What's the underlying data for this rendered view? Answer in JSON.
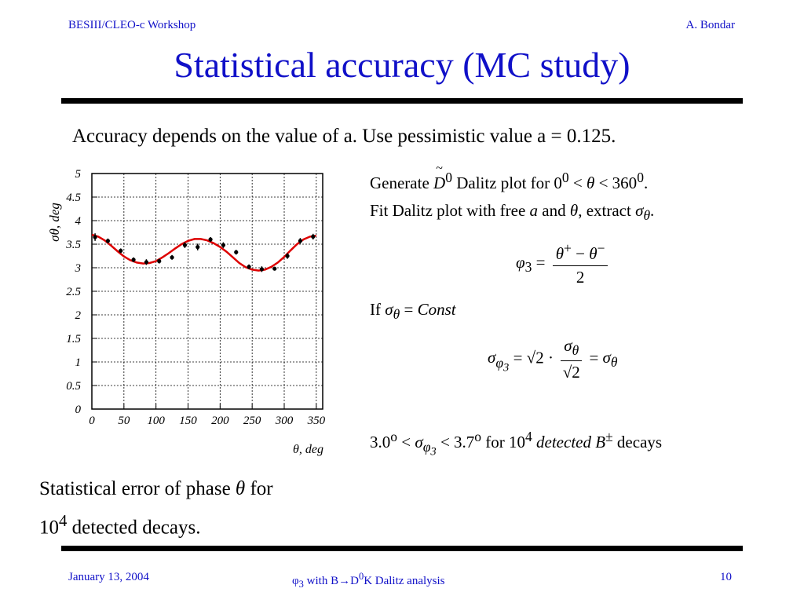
{
  "header": {
    "left": "BESIII/CLEO-c Workshop",
    "right": "A. Bondar"
  },
  "title": "Statistical accuracy (MC study)",
  "intro": "Accuracy depends on the value of a. Use pessimistic value a = 0.125.",
  "right_panel": {
    "line1": "Generate D⁰ Dalitz plot for 0⁰ < θ < 360⁰.",
    "line2": "Fit Dalitz plot with free a and θ, extract σθ.",
    "phi_eq_lhs": "φ3 =",
    "phi_eq_num": "θ+ − θ−",
    "phi_eq_den": "2",
    "if_line": "If σθ = Const",
    "sigma_eq": "σφ3 = √2 · σθ/√2 = σθ",
    "result": "3.0o < σφ3 < 3.7o for 104 detected B± decays"
  },
  "caption": {
    "line1": "Statistical error of phase θ for",
    "line2": "104 detected decays."
  },
  "footer": {
    "left": "January 13, 2004",
    "center": "φ3 with B→D0K Dalitz analysis",
    "right": "10"
  },
  "chart_data": {
    "type": "scatter",
    "ylabel": "σθ, deg",
    "xlabel": "θ, deg",
    "xlim": [
      0,
      360
    ],
    "ylim": [
      0,
      5
    ],
    "xticks": [
      0,
      50,
      100,
      150,
      200,
      250,
      300,
      350
    ],
    "yticks": [
      0,
      0.5,
      1,
      1.5,
      2,
      2.5,
      3,
      3.5,
      4,
      4.5,
      5
    ],
    "grid": true,
    "points": [
      {
        "x": 5,
        "y": 3.65,
        "err": 0.08
      },
      {
        "x": 25,
        "y": 3.57,
        "err": 0.05
      },
      {
        "x": 45,
        "y": 3.36,
        "err": 0.05
      },
      {
        "x": 65,
        "y": 3.17,
        "err": 0.05
      },
      {
        "x": 85,
        "y": 3.12,
        "err": 0.06
      },
      {
        "x": 105,
        "y": 3.14,
        "err": 0.05
      },
      {
        "x": 125,
        "y": 3.22,
        "err": 0.05
      },
      {
        "x": 145,
        "y": 3.48,
        "err": 0.06
      },
      {
        "x": 165,
        "y": 3.44,
        "err": 0.07
      },
      {
        "x": 185,
        "y": 3.6,
        "err": 0.05
      },
      {
        "x": 205,
        "y": 3.48,
        "err": 0.06
      },
      {
        "x": 225,
        "y": 3.33,
        "err": 0.05
      },
      {
        "x": 245,
        "y": 3.02,
        "err": 0.05
      },
      {
        "x": 265,
        "y": 2.97,
        "err": 0.06
      },
      {
        "x": 285,
        "y": 2.98,
        "err": 0.04
      },
      {
        "x": 305,
        "y": 3.25,
        "err": 0.06
      },
      {
        "x": 325,
        "y": 3.57,
        "err": 0.06
      },
      {
        "x": 345,
        "y": 3.66,
        "err": 0.06
      }
    ],
    "fit_curve": {
      "x": [
        0,
        10,
        20,
        30,
        40,
        50,
        60,
        70,
        80,
        90,
        100,
        110,
        120,
        130,
        140,
        150,
        160,
        170,
        180,
        190,
        200,
        210,
        220,
        230,
        240,
        250,
        260,
        270,
        280,
        290,
        300,
        310,
        320,
        330,
        340,
        350
      ],
      "y": [
        3.7,
        3.66,
        3.58,
        3.47,
        3.35,
        3.24,
        3.16,
        3.11,
        3.09,
        3.1,
        3.14,
        3.22,
        3.31,
        3.41,
        3.5,
        3.57,
        3.61,
        3.61,
        3.58,
        3.52,
        3.44,
        3.34,
        3.22,
        3.1,
        3.01,
        2.96,
        2.94,
        2.96,
        3.02,
        3.11,
        3.23,
        3.37,
        3.5,
        3.6,
        3.66,
        3.68
      ],
      "color": "#dd0000"
    }
  }
}
